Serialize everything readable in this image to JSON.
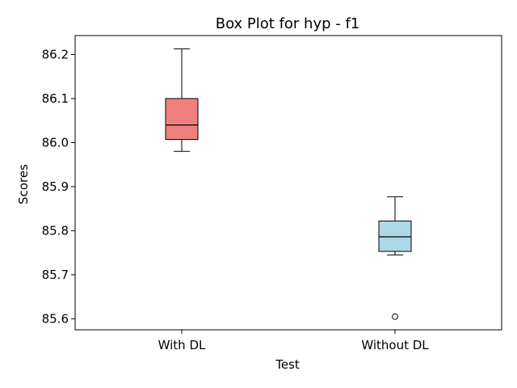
{
  "chart_data": {
    "type": "box",
    "title": "Box Plot for hyp - f1",
    "xlabel": "Test",
    "ylabel": "Scores",
    "ylim": [
      85.575,
      86.243
    ],
    "yticks": [
      85.6,
      85.7,
      85.8,
      85.9,
      86.0,
      86.1,
      86.2
    ],
    "ytick_labels": [
      "85.6",
      "85.7",
      "85.8",
      "85.9",
      "86.0",
      "86.1",
      "86.2"
    ],
    "categories": [
      "With DL",
      "Without DL"
    ],
    "boxes": [
      {
        "category": "With DL",
        "color": "#f08080",
        "whisker_low": 85.98,
        "q1": 86.007,
        "median": 86.04,
        "q3": 86.1,
        "whisker_high": 86.213,
        "outliers": []
      },
      {
        "category": "Without DL",
        "color": "#add8e6",
        "whisker_low": 85.745,
        "q1": 85.753,
        "median": 85.786,
        "q3": 85.822,
        "whisker_high": 85.877,
        "outliers": [
          85.605
        ]
      }
    ],
    "grid": false,
    "legend": "none"
  }
}
